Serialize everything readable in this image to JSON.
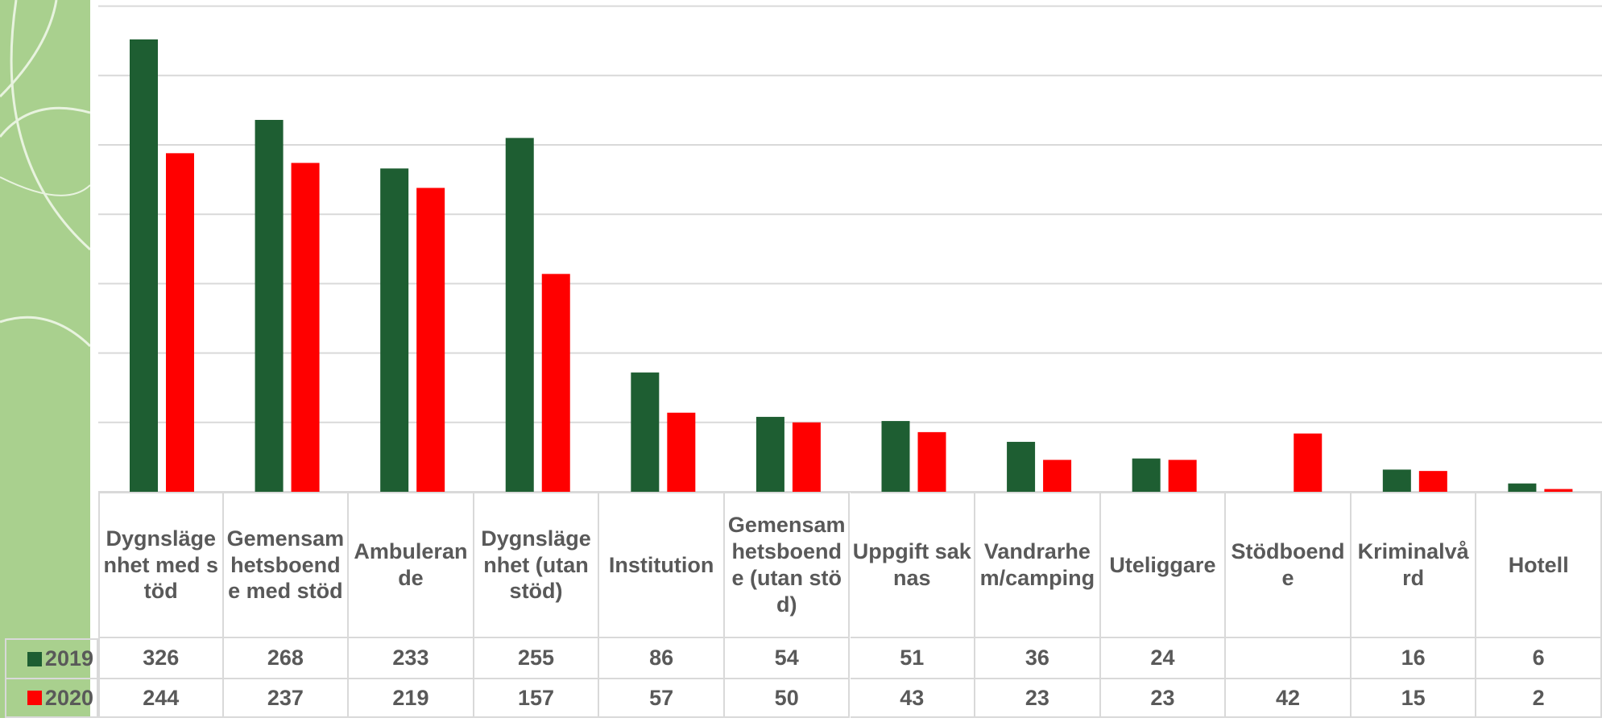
{
  "chart_data": {
    "type": "bar",
    "categories": [
      "Dygnslägenhet med stöd",
      "Gemensamhetsboende med stöd",
      "Ambulerande",
      "Dygnslägenhet (utan stöd)",
      "Institution",
      "Gemensamhetsboende (utan stöd)",
      "Uppgift saknas",
      "Vandrarhem/camping",
      "Uteliggare",
      "Stödboende",
      "Kriminalvård",
      "Hotell"
    ],
    "series": [
      {
        "name": "2019",
        "color": "#1e5e32",
        "values": [
          326,
          268,
          233,
          255,
          86,
          54,
          51,
          36,
          24,
          null,
          16,
          6
        ]
      },
      {
        "name": "2020",
        "color": "#ff0000",
        "values": [
          244,
          237,
          219,
          157,
          57,
          50,
          43,
          23,
          23,
          42,
          15,
          2
        ]
      }
    ],
    "ylim": [
      0,
      350
    ],
    "yticks": [
      0,
      50,
      100,
      150,
      200,
      250,
      300,
      350
    ],
    "grid": true
  }
}
